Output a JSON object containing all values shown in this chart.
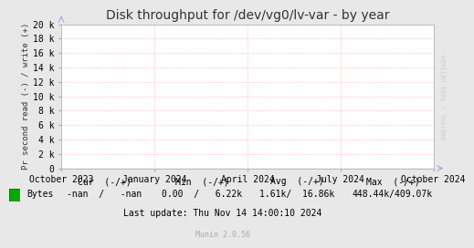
{
  "title": "Disk throughput for /dev/vg0/lv-var - by year",
  "ylabel": "Pr second read (-) / write (+)",
  "ylim": [
    0,
    20000
  ],
  "yticks": [
    0,
    2000,
    4000,
    6000,
    8000,
    10000,
    12000,
    14000,
    16000,
    18000,
    20000
  ],
  "ytick_labels": [
    "0",
    "2 k",
    "4 k",
    "6 k",
    "8 k",
    "10 k",
    "12 k",
    "14 k",
    "16 k",
    "18 k",
    "20 k"
  ],
  "xtick_labels": [
    "October 2023",
    "January 2024",
    "April 2024",
    "July 2024",
    "October 2024"
  ],
  "xtick_positions": [
    0,
    3,
    6,
    9,
    12
  ],
  "background_color": "#e8e8e8",
  "plot_bg_color": "#ffffff",
  "grid_color": "#ffaaaa",
  "line_color": "#000000",
  "legend_label": "Bytes",
  "legend_color": "#00aa00",
  "cur_header": "Cur  (-/+)",
  "cur_val": "-nan  /   -nan",
  "min_header": "Min  (-/+)",
  "min_val": "0.00  /   6.22k",
  "avg_header": "Avg  (-/+)",
  "avg_val": "1.61k/  16.86k",
  "max_header": "Max  (-/+)",
  "max_val": "448.44k/409.07k",
  "last_update": "Last update: Thu Nov 14 14:00:10 2024",
  "munin_version": "Munin 2.0.56",
  "watermark": "RRDTOOL / TOBI OETIKER",
  "title_fontsize": 10,
  "axis_fontsize": 7,
  "bottom_fontsize": 7,
  "munin_fontsize": 6,
  "watermark_fontsize": 5
}
